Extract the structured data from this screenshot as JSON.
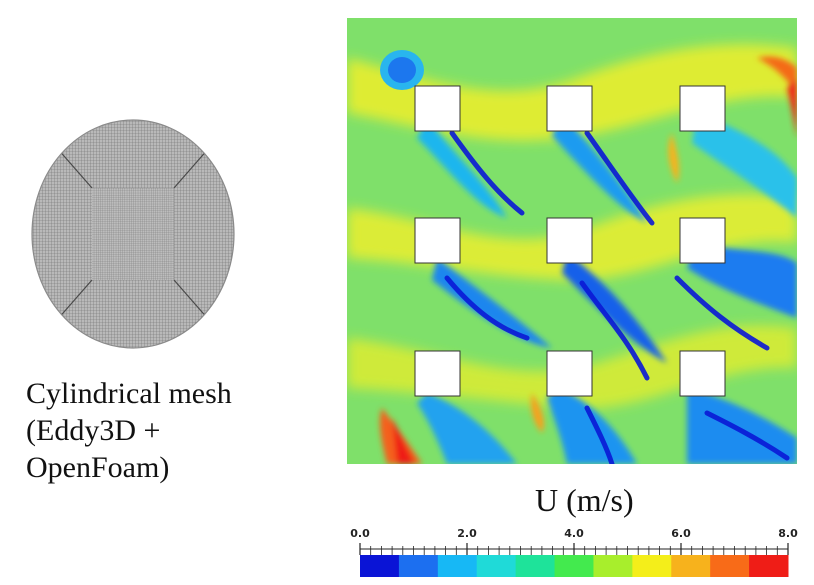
{
  "mesh": {
    "caption_lines": [
      "Cylindrical mesh",
      "(Eddy3D +",
      "OpenFoam)"
    ],
    "icon": "cylindrical-mesh"
  },
  "field": {
    "units_label": "U (m/s)",
    "obstacle_grid": {
      "rows": 3,
      "cols": 3
    }
  },
  "colorbar": {
    "tick_labels": [
      "0.0",
      "2.0",
      "4.0",
      "6.0",
      "8.0"
    ],
    "min": 0.0,
    "max": 8.0,
    "colors": [
      "#0a14d6",
      "#1c6ff0",
      "#17b8f5",
      "#1fdad8",
      "#1ee39a",
      "#43ea4e",
      "#a8ee2c",
      "#f4ee1a",
      "#f7b21c",
      "#f86b18",
      "#ef1d17"
    ]
  }
}
